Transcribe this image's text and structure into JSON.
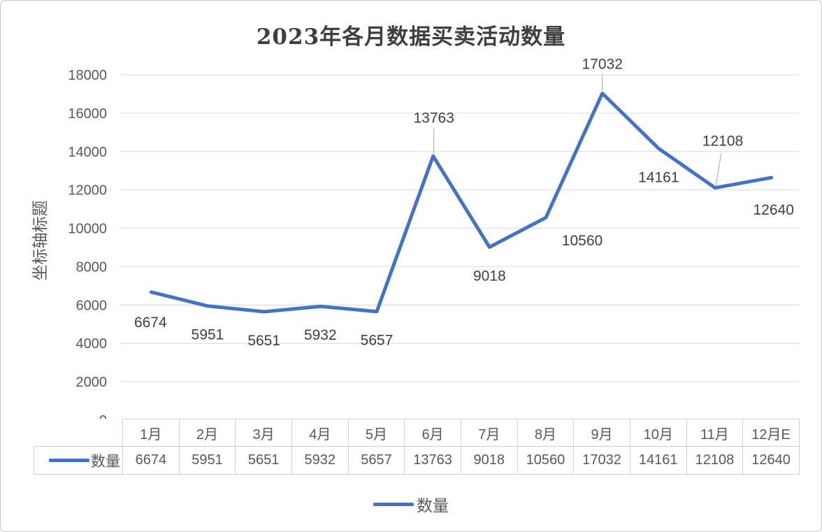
{
  "chart_data": {
    "type": "line",
    "title": "2023年各月数据买卖活动数量",
    "ylabel": "坐标轴标题",
    "xlabel": "",
    "categories": [
      "1月",
      "2月",
      "3月",
      "4月",
      "5月",
      "6月",
      "7月",
      "8月",
      "9月",
      "10月",
      "11月",
      "12月E"
    ],
    "series": [
      {
        "name": "数量",
        "color": "#4472C4",
        "values": [
          6674,
          5951,
          5651,
          5932,
          5657,
          13763,
          9018,
          10560,
          17032,
          14161,
          12108,
          12640
        ]
      }
    ],
    "ylim": [
      0,
      18000
    ],
    "yticks": [
      0,
      2000,
      4000,
      6000,
      8000,
      10000,
      12000,
      14000,
      16000,
      18000
    ],
    "grid": true,
    "data_labels_shown": true,
    "data_table_shown": true,
    "legend_position": "bottom"
  },
  "colors": {
    "line": "#4472C4",
    "gridline": "#d9d9d9",
    "leader_line": "#a6a6a6",
    "table_border": "#d2d2d2",
    "tick_text": "#595959",
    "data_label_text": "#404040",
    "title_text": "#3f3f3f"
  }
}
